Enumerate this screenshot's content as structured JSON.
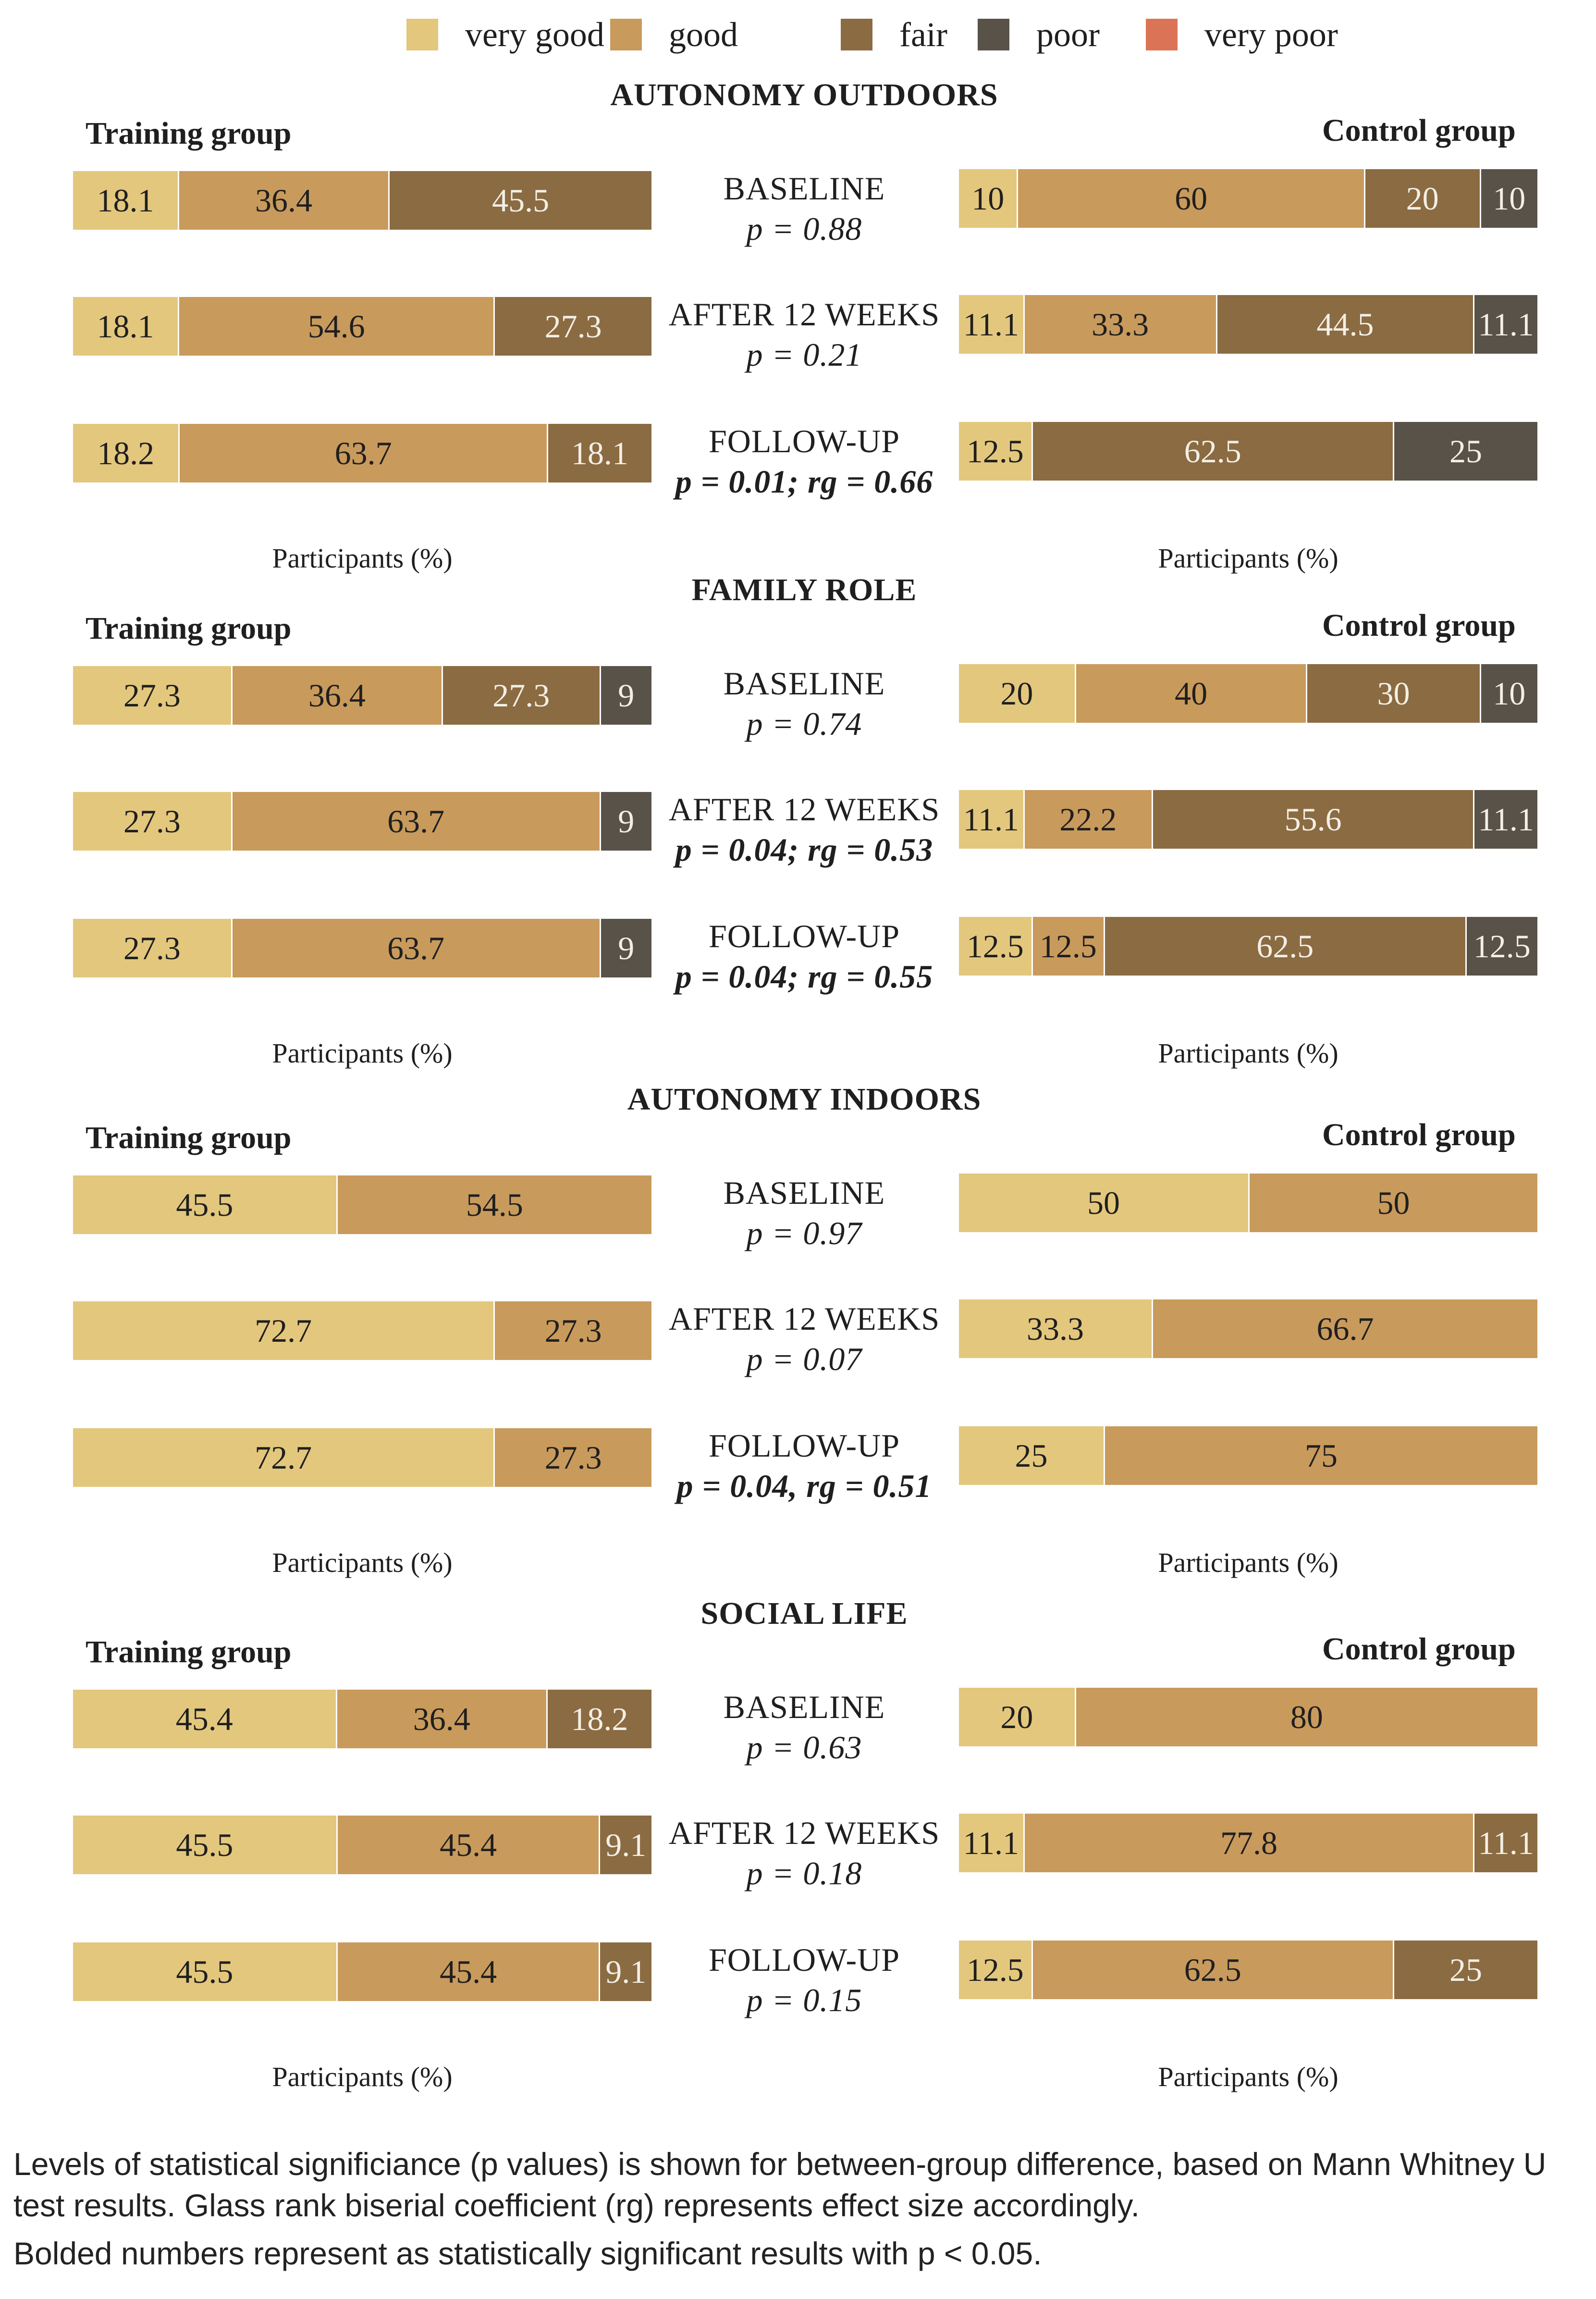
{
  "legend": {
    "items": [
      {
        "key": "very_good",
        "label": "very good",
        "color": "#e3c77d"
      },
      {
        "key": "good",
        "label": "good",
        "color": "#c89a5c"
      },
      {
        "key": "fair",
        "label": "fair",
        "color": "#8b6b42"
      },
      {
        "key": "poor",
        "label": "poor",
        "color": "#595249"
      },
      {
        "key": "very_poor",
        "label": "very poor",
        "color": "#db7456"
      }
    ]
  },
  "chart_data": {
    "type": "bar",
    "orientation": "horizontal-stacked-100",
    "xlabel": "Participants (%)",
    "categories": [
      "very good",
      "good",
      "fair",
      "poor",
      "very poor"
    ],
    "groups": [
      "Training group",
      "Control group"
    ],
    "panels": [
      {
        "title": "AUTONOMY OUTDOORS",
        "rows": [
          {
            "label": "BASELINE",
            "stat": "p = 0.88",
            "bold": false,
            "training": [
              18.1,
              36.4,
              45.5,
              0,
              0
            ],
            "control": [
              10,
              60,
              20,
              10,
              0
            ]
          },
          {
            "label": "AFTER 12 WEEKS",
            "stat": "p = 0.21",
            "bold": false,
            "training": [
              18.1,
              54.6,
              27.3,
              0,
              0
            ],
            "control": [
              11.1,
              33.3,
              44.5,
              11.1,
              0
            ]
          },
          {
            "label": "FOLLOW-UP",
            "stat": "p = 0.01; rg = 0.66",
            "bold": true,
            "training": [
              18.2,
              63.7,
              18.1,
              0,
              0
            ],
            "control": [
              12.5,
              0,
              62.5,
              25,
              0
            ]
          }
        ]
      },
      {
        "title": "FAMILY ROLE",
        "rows": [
          {
            "label": "BASELINE",
            "stat": "p = 0.74",
            "bold": false,
            "training": [
              27.3,
              36.4,
              27.3,
              9,
              0
            ],
            "control": [
              20,
              40,
              30,
              10,
              0
            ]
          },
          {
            "label": "AFTER 12 WEEKS",
            "stat": "p = 0.04; rg = 0.53",
            "bold": true,
            "training": [
              27.3,
              63.7,
              0,
              9,
              0
            ],
            "control": [
              11.1,
              22.2,
              55.6,
              11.1,
              0
            ]
          },
          {
            "label": "FOLLOW-UP",
            "stat": "p = 0.04; rg = 0.55",
            "bold": true,
            "training": [
              27.3,
              63.7,
              0,
              9,
              0
            ],
            "control": [
              12.5,
              12.5,
              62.5,
              12.5,
              0
            ]
          }
        ]
      },
      {
        "title": "AUTONOMY INDOORS",
        "rows": [
          {
            "label": "BASELINE",
            "stat": "p = 0.97",
            "bold": false,
            "training": [
              45.5,
              54.5,
              0,
              0,
              0
            ],
            "control": [
              50,
              50,
              0,
              0,
              0
            ]
          },
          {
            "label": "AFTER 12 WEEKS",
            "stat": "p = 0.07",
            "bold": false,
            "training": [
              72.7,
              27.3,
              0,
              0,
              0
            ],
            "control": [
              33.3,
              66.7,
              0,
              0,
              0
            ]
          },
          {
            "label": "FOLLOW-UP",
            "stat": "p = 0.04, rg = 0.51",
            "bold": true,
            "training": [
              72.7,
              27.3,
              0,
              0,
              0
            ],
            "control": [
              25,
              75,
              0,
              0,
              0
            ]
          }
        ]
      },
      {
        "title": "SOCIAL LIFE",
        "rows": [
          {
            "label": "BASELINE",
            "stat": "p = 0.63",
            "bold": false,
            "training": [
              45.4,
              36.4,
              18.2,
              0,
              0
            ],
            "control": [
              20,
              80,
              0,
              0,
              0
            ]
          },
          {
            "label": "AFTER 12 WEEKS",
            "stat": "p = 0.18",
            "bold": false,
            "training": [
              45.5,
              45.4,
              9.1,
              0,
              0
            ],
            "control": [
              11.1,
              77.8,
              11.1,
              0,
              0
            ]
          },
          {
            "label": "FOLLOW-UP",
            "stat": "p = 0.15",
            "bold": false,
            "training": [
              45.5,
              45.4,
              9.1,
              0,
              0
            ],
            "control": [
              12.5,
              62.5,
              25,
              0,
              0
            ]
          }
        ]
      }
    ]
  },
  "footnote": {
    "line1": "Levels of statistical significiance (p values) is shown for between-group difference, based on Mann Whitney U test results. Glass rank biserial coefficient (rg) represents effect size accordingly.",
    "line2": "Bolded numbers represent as statistically significant results with p < 0.05."
  }
}
